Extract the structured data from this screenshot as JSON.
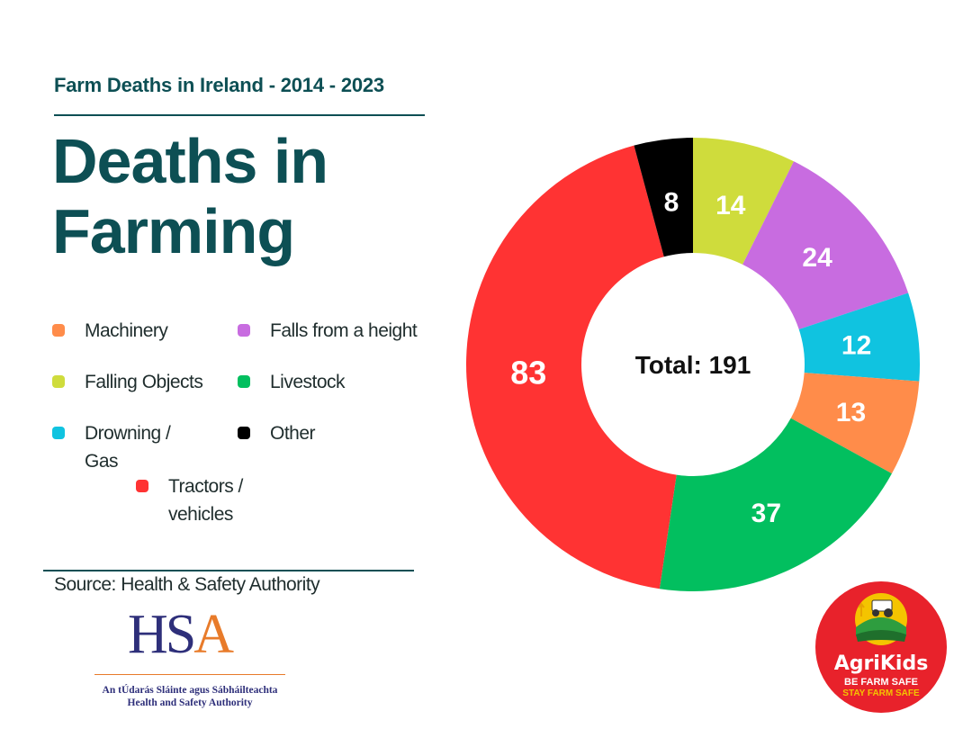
{
  "header": {
    "subtitle": "Farm Deaths in Ireland - 2014 - 2023",
    "title": "Deaths in Farming"
  },
  "legend": [
    {
      "label": "Machinery",
      "color": "#ff8c4a"
    },
    {
      "label": "Falls from a height",
      "color": "#c86ce0"
    },
    {
      "label": "Falling Objects",
      "color": "#cfdc3c"
    },
    {
      "label": "Livestock",
      "color": "#02bf5f"
    },
    {
      "label": "Drowning / Gas",
      "color": "#10c3e0"
    },
    {
      "label": "Other",
      "color": "#000000"
    },
    {
      "label": "Tractors / vehicles",
      "color": "#ff3333"
    }
  ],
  "source": "Source: Health & Safety Authority",
  "hsa_logo": {
    "word_hs": "HS",
    "word_a": "A",
    "line1": "An tÚdarás Sláinte agus Sábháilteachta",
    "line2": "Health and Safety Authority"
  },
  "agrikids_badge": {
    "brand": "AgriKids",
    "line1": "BE FARM SAFE",
    "line2": "STAY FARM SAFE"
  },
  "chart_data": {
    "type": "pie",
    "style": "donut",
    "center_label": "Total: 191",
    "total": 191,
    "start": "top, clockwise",
    "slices": [
      {
        "label": "Falling Objects",
        "value": 14,
        "color": "#cfdc3c"
      },
      {
        "label": "Falls from a height",
        "value": 24,
        "color": "#c86ce0"
      },
      {
        "label": "Drowning / Gas",
        "value": 12,
        "color": "#10c3e0"
      },
      {
        "label": "Machinery",
        "value": 13,
        "color": "#ff8c4a"
      },
      {
        "label": "Livestock",
        "value": 37,
        "color": "#02bf5f"
      },
      {
        "label": "Tractors / vehicles",
        "value": 83,
        "color": "#ff3333"
      },
      {
        "label": "Other",
        "value": 8,
        "color": "#000000"
      }
    ]
  }
}
